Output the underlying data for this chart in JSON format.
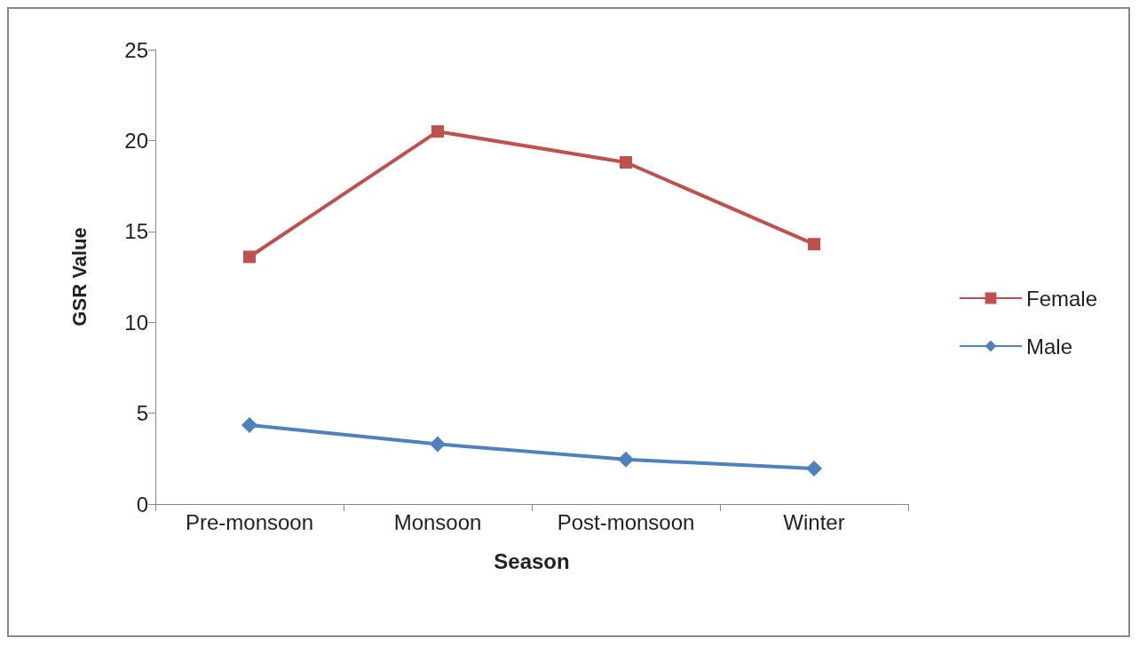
{
  "chart_data": {
    "type": "line",
    "xlabel": "Season",
    "ylabel": "GSR Value",
    "categories": [
      "Pre-monsoon",
      "Monsoon",
      "Post-monsoon",
      "Winter"
    ],
    "series": [
      {
        "name": "Female",
        "color": "#c0504d",
        "marker": "square",
        "values": [
          13.6,
          20.5,
          18.8,
          14.3
        ]
      },
      {
        "name": "Male",
        "color": "#4f81bd",
        "marker": "diamond",
        "values": [
          4.35,
          3.3,
          2.45,
          1.95
        ]
      }
    ],
    "ylim": [
      0,
      25
    ],
    "yticks": [
      0,
      5,
      10,
      15,
      20,
      25
    ],
    "grid": false,
    "legend": "right"
  }
}
